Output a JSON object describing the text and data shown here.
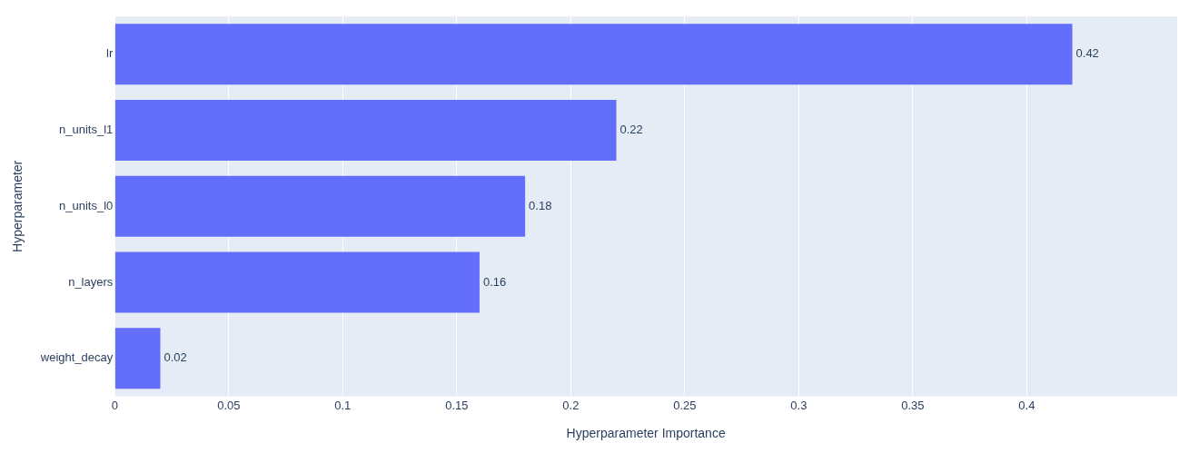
{
  "chart_data": {
    "type": "bar",
    "orientation": "horizontal",
    "xlabel": "Hyperparameter Importance",
    "ylabel": "Hyperparameter",
    "categories": [
      "lr",
      "n_units_l1",
      "n_units_l0",
      "n_layers",
      "weight_decay"
    ],
    "values": [
      0.42,
      0.22,
      0.18,
      0.16,
      0.02
    ],
    "color": "#636efa",
    "xlim": [
      0,
      0.466
    ],
    "xticks": [
      0,
      0.05,
      0.1,
      0.15,
      0.2,
      0.25,
      0.3,
      0.35,
      0.4
    ],
    "grid": "x",
    "legend": false,
    "data_labels": true
  }
}
